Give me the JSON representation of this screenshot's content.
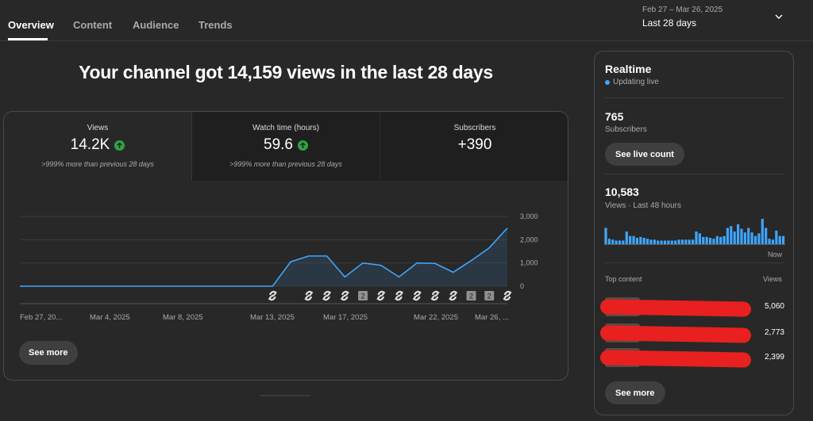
{
  "tabs": [
    {
      "label": "Overview",
      "active": true
    },
    {
      "label": "Content",
      "active": false
    },
    {
      "label": "Audience",
      "active": false
    },
    {
      "label": "Trends",
      "active": false
    }
  ],
  "date_picker": {
    "range": "Feb 27 – Mar 26, 2025",
    "label": "Last 28 days",
    "icon": "chevron-down-icon"
  },
  "headline": "Your channel got 14,159 views in the last 28 days",
  "metrics": [
    {
      "label": "Views",
      "value": "14.2K",
      "trend": "up",
      "sub": ">999% more than previous 28 days"
    },
    {
      "label": "Watch time (hours)",
      "value": "59.6",
      "trend": "up",
      "sub": ">999% more than previous 28 days"
    },
    {
      "label": "Subscribers",
      "value": "+390"
    }
  ],
  "main_see_more": "See more",
  "chart_data": {
    "type": "line",
    "x_labels": [
      "Feb 27, 20...",
      "Mar 4, 2025",
      "Mar 8, 2025",
      "Mar 13, 2025",
      "Mar 17, 2025",
      "Mar 22, 2025",
      "Mar 26, ..."
    ],
    "y_ticks": [
      "3,000",
      "2,000",
      "1,000",
      "0"
    ],
    "ylim": [
      0,
      3000
    ],
    "series": [
      {
        "values": [
          0,
          0,
          0,
          0,
          0,
          0,
          0,
          0,
          0,
          0,
          0,
          0,
          0,
          0,
          0,
          1050,
          1300,
          1300,
          400,
          1000,
          900,
          400,
          1000,
          980,
          600,
          1100,
          1650,
          2500
        ]
      }
    ],
    "line_color": "#3ea6ff",
    "markers": [
      {
        "day": 15,
        "type": "shorts-icon"
      },
      {
        "day": 17,
        "type": "shorts-icon"
      },
      {
        "day": 18,
        "type": "shorts-icon"
      },
      {
        "day": 19,
        "type": "shorts-icon"
      },
      {
        "day": 20,
        "type": "badge",
        "text": "2"
      },
      {
        "day": 21,
        "type": "shorts-icon"
      },
      {
        "day": 22,
        "type": "shorts-icon"
      },
      {
        "day": 23,
        "type": "shorts-icon"
      },
      {
        "day": 24,
        "type": "shorts-icon"
      },
      {
        "day": 25,
        "type": "shorts-icon"
      },
      {
        "day": 26,
        "type": "badge",
        "text": "2"
      },
      {
        "day": 27,
        "type": "badge",
        "text": "2"
      },
      {
        "day": 28,
        "type": "shorts-icon"
      }
    ],
    "grid": true
  },
  "realtime": {
    "title": "Realtime",
    "status": "Updating live",
    "subscribers_value": "765",
    "subscribers_label": "Subscribers",
    "live_count_button": "See live count",
    "views_value": "10,583",
    "views_label": "Views · Last 48 hours",
    "bars": [
      18,
      6,
      5,
      4,
      4,
      4,
      14,
      9,
      9,
      7,
      8,
      7,
      6,
      5,
      5,
      4,
      4,
      4,
      4,
      4,
      4,
      5,
      5,
      5,
      5,
      5,
      14,
      12,
      8,
      8,
      7,
      6,
      9,
      8,
      9,
      18,
      20,
      14,
      22,
      17,
      13,
      18,
      13,
      9,
      12,
      28,
      18,
      6,
      5,
      15,
      9,
      9
    ],
    "now_label": "Now",
    "top_content_label": "Top content",
    "views_column_label": "Views",
    "top_content": [
      {
        "views": "5,060"
      },
      {
        "views": "2,773"
      },
      {
        "views": "2,399"
      }
    ],
    "see_more": "See more"
  },
  "colors": {
    "background": "#282828",
    "accent": "#3ea6ff",
    "up": "#2ba640",
    "redaction": "#e8201f"
  }
}
